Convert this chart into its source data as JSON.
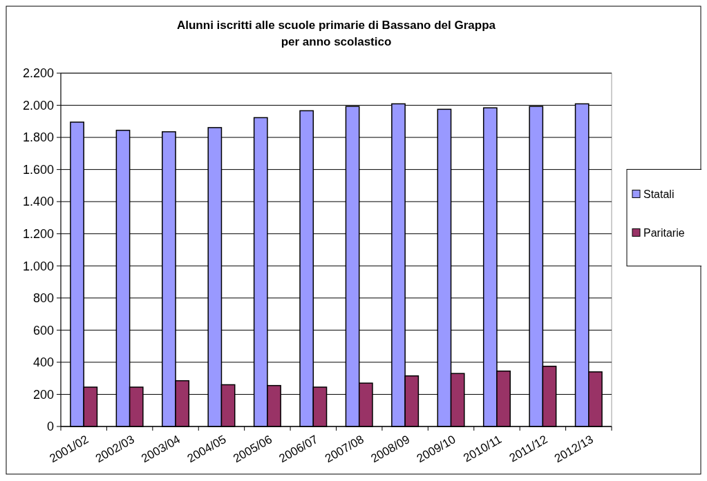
{
  "chart_data": {
    "type": "bar",
    "title": "Alunni iscritti alle scuole primarie di Bassano del Grappa\nper anno scolastico",
    "categories": [
      "2001/02",
      "2002/03",
      "2003/04",
      "2004/05",
      "2005/06",
      "2006/07",
      "2007/08",
      "2008/09",
      "2009/10",
      "2010/11",
      "2011/12",
      "2012/13"
    ],
    "series": [
      {
        "name": "Statali",
        "color": "#9999ff",
        "values": [
          1895,
          1844,
          1835,
          1861,
          1923,
          1966,
          1993,
          2009,
          1975,
          1984,
          1993,
          2009
        ]
      },
      {
        "name": "Paritarie",
        "color": "#993366",
        "values": [
          245,
          245,
          285,
          260,
          255,
          245,
          270,
          315,
          330,
          345,
          375,
          340
        ]
      }
    ],
    "ylim": [
      0,
      2200
    ],
    "yticks": [
      0,
      200,
      400,
      600,
      800,
      {
        "value": 1000,
        "label": "1.000"
      },
      {
        "value": 1200,
        "label": "1.200"
      },
      {
        "value": 1400,
        "label": "1.400"
      },
      {
        "value": 1600,
        "label": "1.600"
      },
      {
        "value": 1800,
        "label": "1.800"
      },
      {
        "value": 2000,
        "label": "2.000"
      },
      {
        "value": 2200,
        "label": "2.200"
      }
    ],
    "grid": "y",
    "legend": "right"
  }
}
